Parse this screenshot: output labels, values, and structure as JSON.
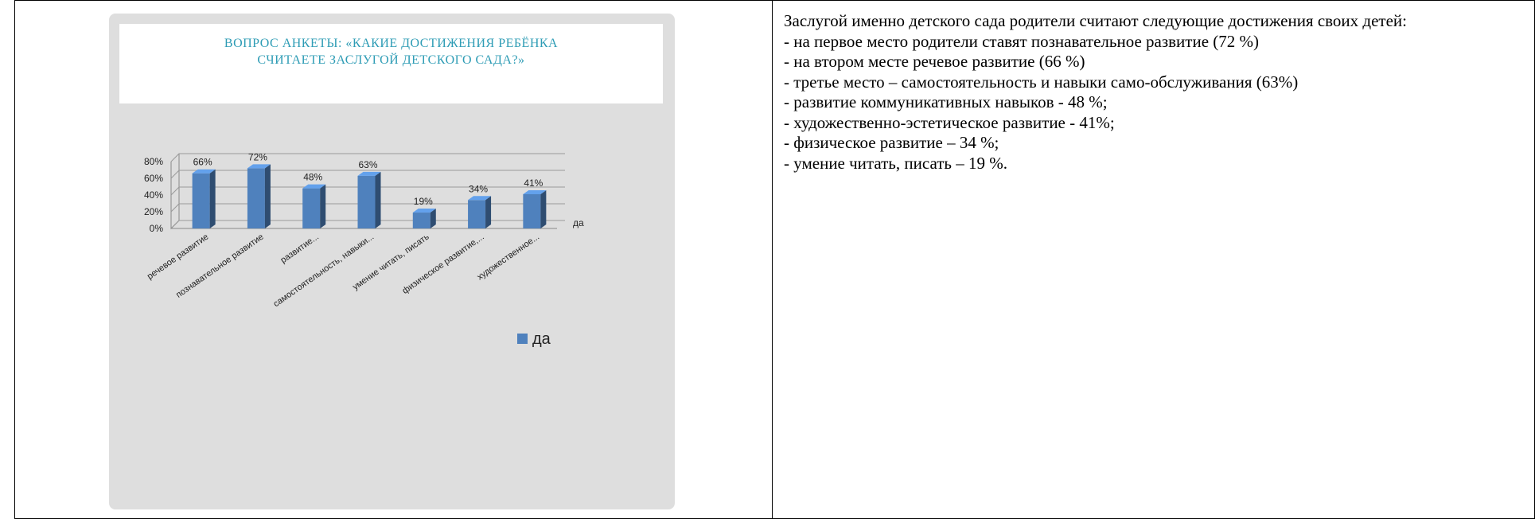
{
  "chart_data": {
    "type": "bar",
    "title": "ВОПРОС АНКЕТЫ: «КАКИЕ ДОСТИЖЕНИЯ РЕБЁНКА СЧИТАЕТЕ ЗАСЛУГОЙ ДЕТСКОГО САДА?»",
    "categories": [
      "речевое развитие",
      "познавательное развитие",
      "развитие...",
      "самостоятельность, навыки...",
      "умение читать, писать",
      "физическое развитие,...",
      "художественное..."
    ],
    "series": [
      {
        "name": "да",
        "color": "#4f81bd",
        "values": [
          66,
          72,
          48,
          63,
          19,
          34,
          41
        ],
        "value_labels": [
          "66%",
          "72%",
          "48%",
          "63%",
          "19%",
          "34%",
          "41%"
        ]
      }
    ],
    "depth_label": "да",
    "ylim": [
      0,
      80
    ],
    "yticks": [
      {
        "value": 0,
        "label": "0%"
      },
      {
        "value": 20,
        "label": "20%"
      },
      {
        "value": 40,
        "label": "40%"
      },
      {
        "value": 60,
        "label": "60%"
      },
      {
        "value": 80,
        "label": "80%"
      }
    ],
    "grid": true
  },
  "document": {
    "paragraphs": [
      "Заслугой именно детского сада родители считают следующие достижения своих детей:",
      "- на первое место родители ставят познавательное развитие (72 %)",
      "- на втором месте речевое развитие (66 %)",
      "- третье место – самостоятельность и навыки само-обслуживания (63%)",
      "- развитие коммуникативных навыков - 48 %;",
      "- художественно-эстетическое развитие - 41%;",
      "- физическое развитие – 34 %;",
      "- умение читать, писать – 19 %."
    ]
  }
}
